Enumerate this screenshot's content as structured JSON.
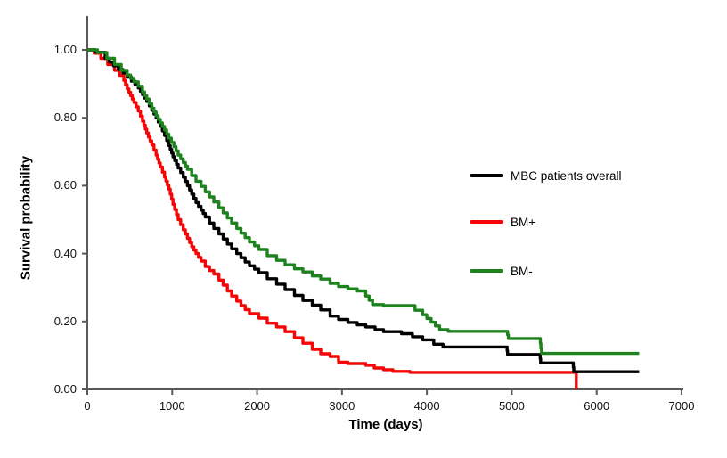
{
  "chart_data": {
    "type": "line",
    "subtype": "kaplan-meier-step",
    "title": "",
    "xlabel": "Time (days)",
    "ylabel": "Survival probability",
    "xlim": [
      0,
      7000
    ],
    "ylim": [
      0,
      1.0
    ],
    "x_ticks": [
      0,
      1000,
      2000,
      3000,
      4000,
      5000,
      6000,
      7000
    ],
    "y_tick_values": [
      0.0,
      0.2,
      0.4,
      0.6,
      0.8,
      1.0
    ],
    "y_tick_labels": [
      "0.00",
      "0.20",
      "0.40",
      "0.60",
      "0.80",
      "1.00"
    ],
    "grid": false,
    "legend_position": "center-right",
    "axis_color": "#595959",
    "text_color": "#000000",
    "series": [
      {
        "name": "MBC patients overall",
        "color": "#000000",
        "points": [
          [
            0,
            1.0
          ],
          [
            100,
            0.993
          ],
          [
            210,
            0.975
          ],
          [
            310,
            0.953
          ],
          [
            420,
            0.932
          ],
          [
            520,
            0.908
          ],
          [
            600,
            0.888
          ],
          [
            650,
            0.868
          ],
          [
            700,
            0.848
          ],
          [
            760,
            0.822
          ],
          [
            810,
            0.8
          ],
          [
            860,
            0.775
          ],
          [
            910,
            0.748
          ],
          [
            960,
            0.718
          ],
          [
            1010,
            0.685
          ],
          [
            1070,
            0.652
          ],
          [
            1130,
            0.625
          ],
          [
            1180,
            0.6
          ],
          [
            1230,
            0.575
          ],
          [
            1280,
            0.55
          ],
          [
            1340,
            0.528
          ],
          [
            1390,
            0.508
          ],
          [
            1440,
            0.49
          ],
          [
            1490,
            0.474
          ],
          [
            1550,
            0.458
          ],
          [
            1600,
            0.443
          ],
          [
            1650,
            0.428
          ],
          [
            1700,
            0.414
          ],
          [
            1760,
            0.4
          ],
          [
            1810,
            0.388
          ],
          [
            1860,
            0.375
          ],
          [
            1910,
            0.364
          ],
          [
            1970,
            0.354
          ],
          [
            2020,
            0.344
          ],
          [
            2120,
            0.326
          ],
          [
            2230,
            0.31
          ],
          [
            2330,
            0.294
          ],
          [
            2440,
            0.277
          ],
          [
            2540,
            0.262
          ],
          [
            2650,
            0.248
          ],
          [
            2750,
            0.234
          ],
          [
            2860,
            0.216
          ],
          [
            2960,
            0.206
          ],
          [
            3070,
            0.197
          ],
          [
            3180,
            0.19
          ],
          [
            3280,
            0.184
          ],
          [
            3390,
            0.176
          ],
          [
            3490,
            0.17
          ],
          [
            3700,
            0.164
          ],
          [
            3830,
            0.155
          ],
          [
            3950,
            0.146
          ],
          [
            4080,
            0.133
          ],
          [
            4190,
            0.125
          ],
          [
            4940,
            0.125
          ],
          [
            4950,
            0.103
          ],
          [
            5330,
            0.103
          ],
          [
            5340,
            0.078
          ],
          [
            5720,
            0.078
          ],
          [
            5730,
            0.052
          ],
          [
            6500,
            0.052
          ]
        ]
      },
      {
        "name": "BM+",
        "color": "#F50505",
        "points": [
          [
            0,
            1.0
          ],
          [
            80,
            0.99
          ],
          [
            160,
            0.975
          ],
          [
            240,
            0.957
          ],
          [
            320,
            0.94
          ],
          [
            380,
            0.925
          ],
          [
            430,
            0.91
          ],
          [
            470,
            0.885
          ],
          [
            510,
            0.865
          ],
          [
            550,
            0.845
          ],
          [
            600,
            0.82
          ],
          [
            650,
            0.79
          ],
          [
            700,
            0.755
          ],
          [
            760,
            0.72
          ],
          [
            810,
            0.69
          ],
          [
            860,
            0.655
          ],
          [
            910,
            0.625
          ],
          [
            960,
            0.59
          ],
          [
            1010,
            0.545
          ],
          [
            1070,
            0.5
          ],
          [
            1130,
            0.47
          ],
          [
            1180,
            0.445
          ],
          [
            1230,
            0.42
          ],
          [
            1280,
            0.4
          ],
          [
            1340,
            0.378
          ],
          [
            1390,
            0.362
          ],
          [
            1440,
            0.35
          ],
          [
            1490,
            0.34
          ],
          [
            1550,
            0.322
          ],
          [
            1600,
            0.307
          ],
          [
            1650,
            0.29
          ],
          [
            1700,
            0.275
          ],
          [
            1760,
            0.26
          ],
          [
            1810,
            0.247
          ],
          [
            1860,
            0.235
          ],
          [
            1910,
            0.223
          ],
          [
            2020,
            0.21
          ],
          [
            2120,
            0.195
          ],
          [
            2230,
            0.184
          ],
          [
            2330,
            0.17
          ],
          [
            2440,
            0.152
          ],
          [
            2540,
            0.136
          ],
          [
            2650,
            0.118
          ],
          [
            2750,
            0.105
          ],
          [
            2860,
            0.097
          ],
          [
            2960,
            0.08
          ],
          [
            3070,
            0.076
          ],
          [
            3280,
            0.071
          ],
          [
            3380,
            0.063
          ],
          [
            3490,
            0.058
          ],
          [
            3600,
            0.053
          ],
          [
            3800,
            0.05
          ],
          [
            5760,
            0.05
          ],
          [
            5760,
            0.0
          ]
        ]
      },
      {
        "name": "BM-",
        "color": "#1E821E",
        "points": [
          [
            0,
            1.0
          ],
          [
            120,
            0.992
          ],
          [
            230,
            0.975
          ],
          [
            320,
            0.957
          ],
          [
            400,
            0.94
          ],
          [
            470,
            0.926
          ],
          [
            550,
            0.906
          ],
          [
            600,
            0.893
          ],
          [
            650,
            0.876
          ],
          [
            700,
            0.855
          ],
          [
            760,
            0.828
          ],
          [
            810,
            0.806
          ],
          [
            860,
            0.785
          ],
          [
            910,
            0.764
          ],
          [
            960,
            0.74
          ],
          [
            1020,
            0.715
          ],
          [
            1070,
            0.69
          ],
          [
            1130,
            0.668
          ],
          [
            1180,
            0.648
          ],
          [
            1230,
            0.63
          ],
          [
            1280,
            0.613
          ],
          [
            1340,
            0.598
          ],
          [
            1390,
            0.582
          ],
          [
            1440,
            0.567
          ],
          [
            1490,
            0.552
          ],
          [
            1550,
            0.535
          ],
          [
            1600,
            0.52
          ],
          [
            1650,
            0.505
          ],
          [
            1700,
            0.49
          ],
          [
            1760,
            0.474
          ],
          [
            1810,
            0.46
          ],
          [
            1860,
            0.447
          ],
          [
            1910,
            0.434
          ],
          [
            1970,
            0.423
          ],
          [
            2020,
            0.412
          ],
          [
            2120,
            0.394
          ],
          [
            2230,
            0.38
          ],
          [
            2330,
            0.367
          ],
          [
            2440,
            0.355
          ],
          [
            2540,
            0.346
          ],
          [
            2650,
            0.334
          ],
          [
            2750,
            0.325
          ],
          [
            2860,
            0.312
          ],
          [
            2960,
            0.303
          ],
          [
            3070,
            0.296
          ],
          [
            3180,
            0.29
          ],
          [
            3280,
            0.275
          ],
          [
            3360,
            0.25
          ],
          [
            3490,
            0.247
          ],
          [
            3800,
            0.247
          ],
          [
            3860,
            0.233
          ],
          [
            3950,
            0.22
          ],
          [
            4050,
            0.198
          ],
          [
            4150,
            0.176
          ],
          [
            4250,
            0.171
          ],
          [
            4940,
            0.171
          ],
          [
            4960,
            0.15
          ],
          [
            5330,
            0.15
          ],
          [
            5350,
            0.106
          ],
          [
            6500,
            0.106
          ]
        ]
      }
    ]
  }
}
